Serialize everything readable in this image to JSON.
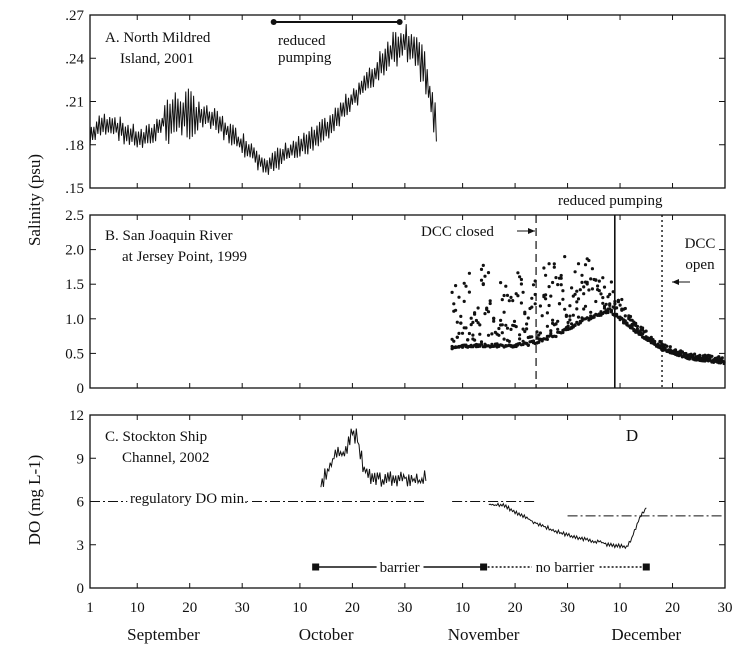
{
  "chart_data": [
    {
      "panel": "A",
      "type": "line",
      "annotation": [
        "A. North Mildred",
        "Island, 2001"
      ],
      "yticks": [
        ".15",
        ".18",
        ".21",
        ".24",
        ".27"
      ],
      "ylim": [
        0.15,
        0.27
      ],
      "reduced_pumping": {
        "label": [
          "reduced",
          "pumping"
        ],
        "start_day": 36,
        "end_day": 60
      },
      "series": [
        {
          "x": [
            1,
            3,
            5,
            7,
            9,
            11,
            13,
            15,
            17,
            19,
            21,
            23,
            25,
            27,
            29,
            31,
            33,
            35,
            37,
            39,
            41,
            43,
            45,
            47,
            49,
            51,
            53,
            55,
            57,
            59,
            61,
            63,
            65,
            67
          ],
          "y": [
            0.185,
            0.193,
            0.195,
            0.19,
            0.186,
            0.183,
            0.188,
            0.196,
            0.2,
            0.202,
            0.2,
            0.199,
            0.196,
            0.19,
            0.183,
            0.178,
            0.17,
            0.165,
            0.17,
            0.175,
            0.178,
            0.183,
            0.188,
            0.195,
            0.203,
            0.212,
            0.22,
            0.228,
            0.238,
            0.247,
            0.252,
            0.247,
            0.228,
            0.19
          ]
        }
      ]
    },
    {
      "panel": "B",
      "type": "scatter",
      "annotation": [
        "B. San Joaquin River",
        "at Jersey Point, 1999"
      ],
      "yticks": [
        "0",
        "0.5",
        "1.0",
        "1.5",
        "2.0",
        "2.5"
      ],
      "ylim": [
        0,
        2.5
      ],
      "dcc_closed": {
        "label": "DCC closed",
        "day": 86
      },
      "reduced_pumping": {
        "label": "reduced pumping",
        "day": 101
      },
      "dcc_open": {
        "label": [
          "DCC",
          "open"
        ],
        "day": 110
      },
      "lower_envelope": {
        "x": [
          70,
          75,
          80,
          85,
          90,
          95,
          100,
          105,
          110,
          115,
          122
        ],
        "y": [
          0.55,
          0.6,
          0.58,
          0.62,
          0.75,
          0.95,
          1.1,
          0.8,
          0.55,
          0.42,
          0.35
        ]
      },
      "upper_envelope": {
        "x": [
          70,
          75,
          80,
          85,
          90,
          95,
          100,
          105,
          110,
          115,
          122
        ],
        "y": [
          1.5,
          1.8,
          1.7,
          1.75,
          1.9,
          1.95,
          1.6,
          0.95,
          0.65,
          0.5,
          0.45
        ]
      }
    },
    {
      "panel": "C",
      "type": "line",
      "annotation": [
        "C. Stockton Ship",
        "Channel, 2002"
      ],
      "panel_letter_d": "D",
      "yticks": [
        "0",
        "3",
        "6",
        "9",
        "12"
      ],
      "ylim": [
        0,
        12
      ],
      "regulatory_label": "regulatory DO min.",
      "regulatory_segments": [
        {
          "x": [
            1,
            65
          ],
          "y": 6
        },
        {
          "x": [
            70,
            86
          ],
          "y": 6
        },
        {
          "x": [
            92,
            122
          ],
          "y": 5
        }
      ],
      "series": [
        {
          "x": [
            45,
            46,
            47,
            48,
            49,
            50,
            51,
            52,
            53,
            54,
            55,
            56,
            57,
            58,
            59,
            60,
            61,
            62,
            63,
            64,
            65
          ],
          "y": [
            7,
            8,
            8.8,
            9.2,
            9.3,
            9.8,
            10.7,
            10.4,
            8.5,
            7.8,
            7.5,
            7.6,
            7.4,
            7.5,
            7.6,
            7.5,
            7.6,
            7.5,
            7.4,
            7.5,
            7.6
          ]
        },
        {
          "x": [
            77,
            80,
            82,
            84,
            86,
            88,
            90,
            92,
            94,
            96,
            98,
            100,
            102,
            103,
            104,
            105,
            106,
            107
          ],
          "y": [
            5.8,
            5.7,
            5.3,
            4.9,
            4.5,
            4.2,
            3.9,
            3.7,
            3.5,
            3.3,
            3.2,
            3.0,
            2.9,
            2.8,
            3.2,
            4.2,
            5.0,
            5.6
          ]
        }
      ],
      "barrier": {
        "label": "barrier",
        "start_day": 44,
        "end_day": 76
      },
      "no_barrier": {
        "label": "no barrier",
        "start_day": 76,
        "end_day": 107
      }
    }
  ],
  "ylabel_top": "Salinity (psu)",
  "ylabel_bottom": "DO (mg L-1)",
  "xticks": [
    {
      "day": 1,
      "label": "1"
    },
    {
      "day": 10,
      "label": "10"
    },
    {
      "day": 20,
      "label": "20"
    },
    {
      "day": 30,
      "label": "30"
    },
    {
      "day": 41,
      "label": "10"
    },
    {
      "day": 51,
      "label": "20"
    },
    {
      "day": 61,
      "label": "30"
    },
    {
      "day": 72,
      "label": "10"
    },
    {
      "day": 82,
      "label": "20"
    },
    {
      "day": 92,
      "label": "30"
    },
    {
      "day": 102,
      "label": "10"
    },
    {
      "day": 112,
      "label": "20"
    },
    {
      "day": 122,
      "label": "30"
    }
  ],
  "months": [
    {
      "label": "September",
      "day": 15
    },
    {
      "label": "October",
      "day": 46
    },
    {
      "label": "November",
      "day": 76
    },
    {
      "label": "December",
      "day": 107
    }
  ]
}
